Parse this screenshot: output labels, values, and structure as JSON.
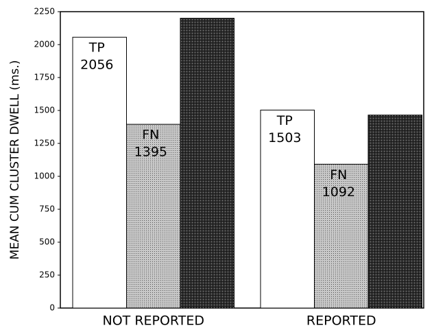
{
  "chart_data": {
    "type": "bar",
    "y_label": "MEAN CUM CLUSTER DWELL (ms.)",
    "categories": [
      "NOT REPORTED",
      "REPORTED"
    ],
    "series": [
      {
        "name": "TP",
        "color": "#ffffff",
        "values": [
          2056,
          1503
        ]
      },
      {
        "name": "FN",
        "color": "#c8c8c8",
        "values": [
          1395,
          1092
        ]
      },
      {
        "color": "#2e2e2e",
        "values": [
          2200,
          1465
        ]
      }
    ],
    "ylim": [
      0,
      2250
    ],
    "yticks": [
      0,
      250,
      500,
      750,
      1000,
      1250,
      1500,
      1750,
      2000,
      2250
    ]
  }
}
